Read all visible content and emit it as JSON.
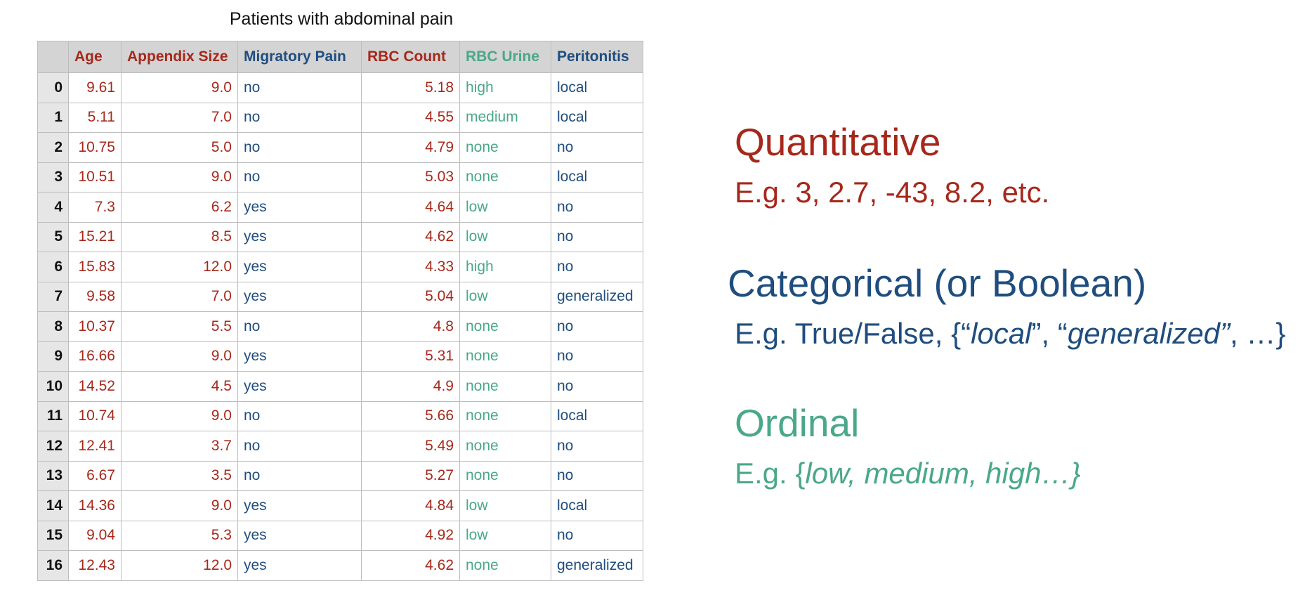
{
  "caption": "Patients with abdominal pain",
  "columns": [
    "Age",
    "Appendix Size",
    "Migratory Pain",
    "RBC Count",
    "RBC Urine",
    "Peritonitis"
  ],
  "rows": [
    {
      "idx": "0",
      "age": "9.61",
      "appendix": "9.0",
      "migratory": "no",
      "rbc": "5.18",
      "urine": "high",
      "peritonitis": "local"
    },
    {
      "idx": "1",
      "age": "5.11",
      "appendix": "7.0",
      "migratory": "no",
      "rbc": "4.55",
      "urine": "medium",
      "peritonitis": "local"
    },
    {
      "idx": "2",
      "age": "10.75",
      "appendix": "5.0",
      "migratory": "no",
      "rbc": "4.79",
      "urine": "none",
      "peritonitis": "no"
    },
    {
      "idx": "3",
      "age": "10.51",
      "appendix": "9.0",
      "migratory": "no",
      "rbc": "5.03",
      "urine": "none",
      "peritonitis": "local"
    },
    {
      "idx": "4",
      "age": "7.3",
      "appendix": "6.2",
      "migratory": "yes",
      "rbc": "4.64",
      "urine": "low",
      "peritonitis": "no"
    },
    {
      "idx": "5",
      "age": "15.21",
      "appendix": "8.5",
      "migratory": "yes",
      "rbc": "4.62",
      "urine": "low",
      "peritonitis": "no"
    },
    {
      "idx": "6",
      "age": "15.83",
      "appendix": "12.0",
      "migratory": "yes",
      "rbc": "4.33",
      "urine": "high",
      "peritonitis": "no"
    },
    {
      "idx": "7",
      "age": "9.58",
      "appendix": "7.0",
      "migratory": "yes",
      "rbc": "5.04",
      "urine": "low",
      "peritonitis": "generalized"
    },
    {
      "idx": "8",
      "age": "10.37",
      "appendix": "5.5",
      "migratory": "no",
      "rbc": "4.8",
      "urine": "none",
      "peritonitis": "no"
    },
    {
      "idx": "9",
      "age": "16.66",
      "appendix": "9.0",
      "migratory": "yes",
      "rbc": "5.31",
      "urine": "none",
      "peritonitis": "no"
    },
    {
      "idx": "10",
      "age": "14.52",
      "appendix": "4.5",
      "migratory": "yes",
      "rbc": "4.9",
      "urine": "none",
      "peritonitis": "no"
    },
    {
      "idx": "11",
      "age": "10.74",
      "appendix": "9.0",
      "migratory": "no",
      "rbc": "5.66",
      "urine": "none",
      "peritonitis": "local"
    },
    {
      "idx": "12",
      "age": "12.41",
      "appendix": "3.7",
      "migratory": "no",
      "rbc": "5.49",
      "urine": "none",
      "peritonitis": "no"
    },
    {
      "idx": "13",
      "age": "6.67",
      "appendix": "3.5",
      "migratory": "no",
      "rbc": "5.27",
      "urine": "none",
      "peritonitis": "no"
    },
    {
      "idx": "14",
      "age": "14.36",
      "appendix": "9.0",
      "migratory": "yes",
      "rbc": "4.84",
      "urine": "low",
      "peritonitis": "local"
    },
    {
      "idx": "15",
      "age": "9.04",
      "appendix": "5.3",
      "migratory": "yes",
      "rbc": "4.92",
      "urine": "low",
      "peritonitis": "no"
    },
    {
      "idx": "16",
      "age": "12.43",
      "appendix": "12.0",
      "migratory": "yes",
      "rbc": "4.62",
      "urine": "none",
      "peritonitis": "generalized"
    }
  ],
  "panel": {
    "quantitative": {
      "title": "Quantitative",
      "example": "E.g. 3, 2.7, -43, 8.2, etc."
    },
    "categorical": {
      "title": "Categorical (or Boolean)",
      "example_prefix": "E.g. True/False, {“",
      "example_item1": "local",
      "example_mid": "”, “",
      "example_item2": "generalized”",
      "example_suffix": ", …}"
    },
    "ordinal": {
      "title": "Ordinal",
      "example_prefix": "E.g. {",
      "example_items": "low, medium, high…}"
    }
  },
  "colors": {
    "quantitative": "#a6281b",
    "categorical": "#1f4d7e",
    "ordinal": "#4aa88a",
    "header_bg": "#d4d4d4",
    "index_bg": "#e6e6e6"
  }
}
